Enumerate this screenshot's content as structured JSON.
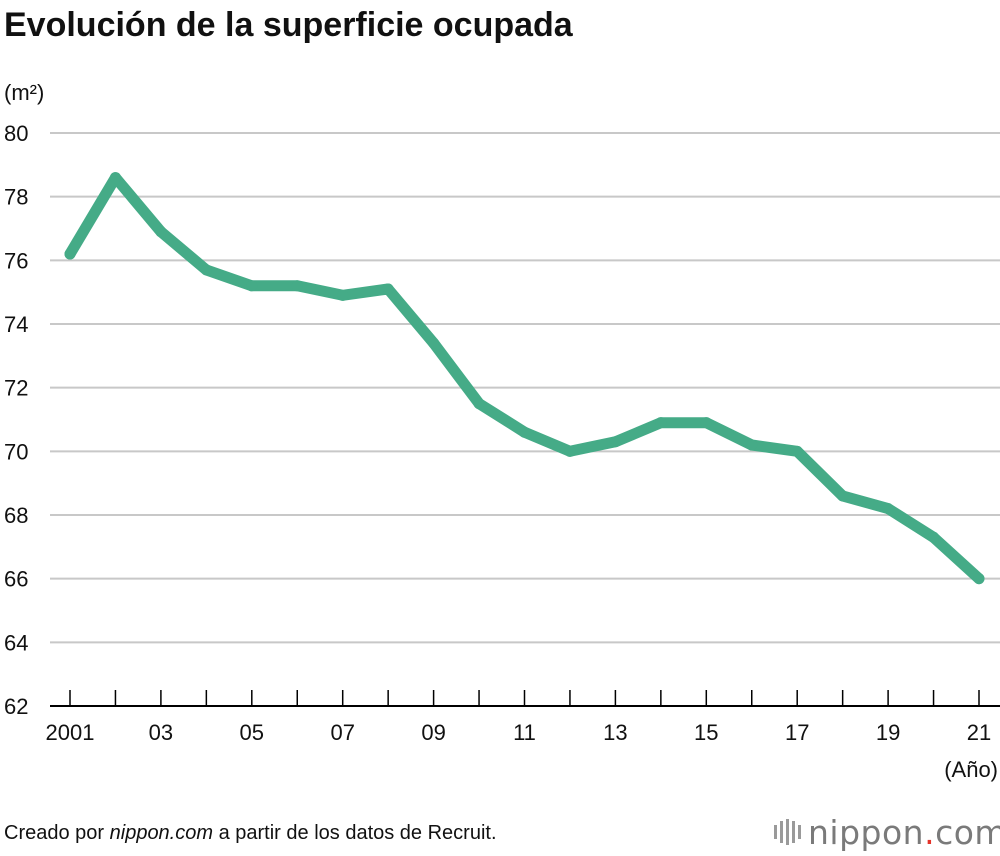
{
  "title": "Evolución de la superficie ocupada",
  "source": {
    "prefix": "Creado por ",
    "site": "nippon.com",
    "suffix": " a partir de los datos de Recruit."
  },
  "logo": {
    "name": "nippon",
    "dot": ".",
    "tld": "com"
  },
  "colors": {
    "line": "#45ab87",
    "grid": "#c8c8c8",
    "axis": "#000000"
  },
  "chart_data": {
    "type": "line",
    "title": "Evolución de la superficie ocupada",
    "ylabel": "(m²)",
    "xlabel": "(Año)",
    "ylim": [
      62,
      80
    ],
    "yticks": [
      62,
      64,
      66,
      68,
      70,
      72,
      74,
      76,
      78,
      80
    ],
    "grid": true,
    "x": [
      2001,
      2002,
      2003,
      2004,
      2005,
      2006,
      2007,
      2008,
      2009,
      2010,
      2011,
      2012,
      2013,
      2014,
      2015,
      2016,
      2017,
      2018,
      2019,
      2020,
      2021
    ],
    "xtick_values": [
      2001,
      2003,
      2005,
      2007,
      2009,
      2011,
      2013,
      2015,
      2017,
      2019,
      2021
    ],
    "xtick_labels": [
      "2001",
      "03",
      "05",
      "07",
      "09",
      "11",
      "13",
      "15",
      "17",
      "19",
      "21"
    ],
    "series": [
      {
        "values": [
          76.2,
          78.6,
          76.9,
          75.7,
          75.2,
          75.2,
          74.9,
          75.1,
          73.4,
          71.5,
          70.6,
          70.0,
          70.3,
          70.9,
          70.9,
          70.2,
          70.0,
          68.6,
          68.2,
          67.3,
          66.0
        ]
      }
    ]
  }
}
